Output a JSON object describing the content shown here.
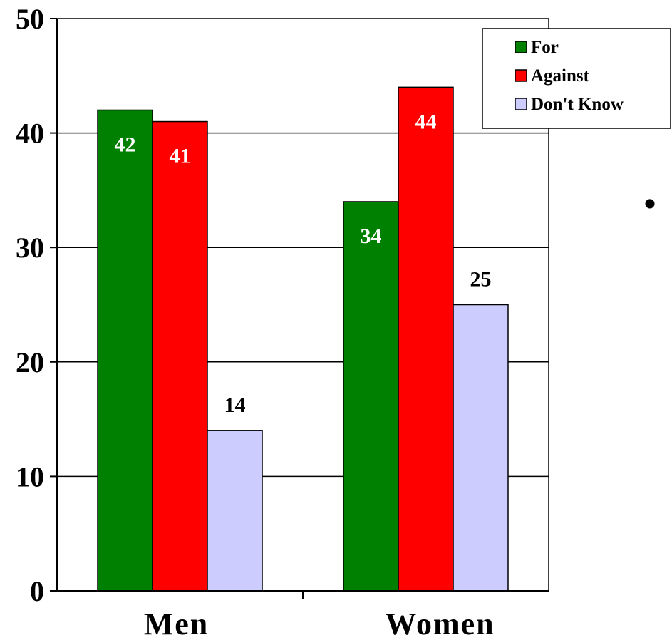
{
  "chart_data": {
    "type": "bar",
    "categories": [
      "Men",
      "Women"
    ],
    "series": [
      {
        "name": "For",
        "values": [
          42,
          34
        ],
        "color": "#008000",
        "label_color": "#ffffff",
        "label_inside": true
      },
      {
        "name": "Against",
        "values": [
          41,
          44
        ],
        "color": "#ff0000",
        "label_color": "#ffffff",
        "label_inside": true
      },
      {
        "name": "Don't Know",
        "values": [
          14,
          25
        ],
        "color": "#ccccff",
        "label_color": "#000000",
        "label_inside": false
      }
    ],
    "y_ticks": [
      "0",
      "10",
      "20",
      "30",
      "40",
      "50"
    ],
    "ylim": [
      0,
      50
    ],
    "grid": true,
    "legend_position": "top-right",
    "title": "",
    "xlabel": "",
    "ylabel": ""
  },
  "bullet_glyph": "•"
}
